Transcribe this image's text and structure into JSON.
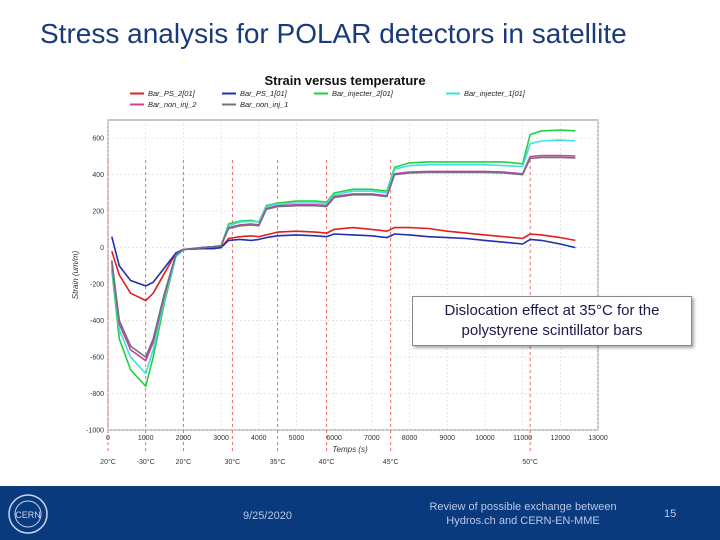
{
  "slide": {
    "title": "Stress analysis for POLAR detectors in satellite",
    "callout": "Dislocation effect at 35°C for the polystyrene scintillator bars"
  },
  "footer": {
    "date": "9/25/2020",
    "text": "Review of possible exchange between Hydros.ch and CERN-EN-MME",
    "page": "15",
    "logo_text": "CERN",
    "background": "#0a3a7e"
  },
  "chart_data": {
    "type": "line",
    "title": "Strain versus temperature",
    "xlabel": "Temps (s)",
    "ylabel": "Strain (um/m)",
    "xlim": [
      0,
      13000
    ],
    "ylim": [
      -1000,
      700
    ],
    "xticks": [
      0,
      1000,
      2000,
      3000,
      4000,
      5000,
      6000,
      7000,
      8000,
      9000,
      10000,
      11000,
      12000,
      13000
    ],
    "yticks": [
      -1000,
      -800,
      -600,
      -400,
      -200,
      0,
      200,
      400,
      600
    ],
    "grid": true,
    "legend_position": "top",
    "temperature_markers": [
      {
        "x": 0,
        "label": "20°C"
      },
      {
        "x": 1000,
        "label": "-30°C"
      },
      {
        "x": 2000,
        "label": "20°C"
      },
      {
        "x": 3300,
        "label": "30°C"
      },
      {
        "x": 4500,
        "label": "35°C"
      },
      {
        "x": 5800,
        "label": "40°C"
      },
      {
        "x": 7500,
        "label": "45°C"
      },
      {
        "x": 11200,
        "label": "50°C"
      }
    ],
    "series": [
      {
        "name": "Bar_PS_2[01]",
        "color": "#e02020",
        "points": [
          [
            100,
            -20
          ],
          [
            300,
            -150
          ],
          [
            600,
            -250
          ],
          [
            1000,
            -290
          ],
          [
            1200,
            -250
          ],
          [
            1500,
            -140
          ],
          [
            1800,
            -30
          ],
          [
            2000,
            -10
          ],
          [
            2500,
            -5
          ],
          [
            2800,
            -5
          ],
          [
            3000,
            0
          ],
          [
            3200,
            50
          ],
          [
            3500,
            60
          ],
          [
            3800,
            65
          ],
          [
            4000,
            60
          ],
          [
            4200,
            70
          ],
          [
            4500,
            85
          ],
          [
            5000,
            90
          ],
          [
            5500,
            85
          ],
          [
            5800,
            80
          ],
          [
            6000,
            100
          ],
          [
            6500,
            110
          ],
          [
            7000,
            100
          ],
          [
            7400,
            90
          ],
          [
            7600,
            110
          ],
          [
            8000,
            110
          ],
          [
            8500,
            105
          ],
          [
            9000,
            90
          ],
          [
            9500,
            80
          ],
          [
            10000,
            70
          ],
          [
            10500,
            60
          ],
          [
            11000,
            50
          ],
          [
            11200,
            75
          ],
          [
            11500,
            70
          ],
          [
            12000,
            55
          ],
          [
            12400,
            40
          ]
        ]
      },
      {
        "name": "Bar_PS_1[01]",
        "color": "#2030b0",
        "points": [
          [
            100,
            60
          ],
          [
            300,
            -100
          ],
          [
            600,
            -180
          ],
          [
            1000,
            -210
          ],
          [
            1200,
            -190
          ],
          [
            1500,
            -110
          ],
          [
            1800,
            -30
          ],
          [
            2000,
            -10
          ],
          [
            2500,
            -5
          ],
          [
            2800,
            -5
          ],
          [
            3000,
            0
          ],
          [
            3200,
            40
          ],
          [
            3500,
            45
          ],
          [
            3800,
            40
          ],
          [
            4000,
            45
          ],
          [
            4200,
            55
          ],
          [
            4500,
            65
          ],
          [
            5000,
            70
          ],
          [
            5500,
            65
          ],
          [
            5800,
            60
          ],
          [
            6000,
            75
          ],
          [
            6500,
            70
          ],
          [
            7000,
            65
          ],
          [
            7400,
            55
          ],
          [
            7600,
            75
          ],
          [
            8000,
            70
          ],
          [
            8500,
            60
          ],
          [
            9000,
            55
          ],
          [
            9500,
            50
          ],
          [
            10000,
            40
          ],
          [
            10500,
            30
          ],
          [
            11000,
            20
          ],
          [
            11200,
            45
          ],
          [
            11500,
            40
          ],
          [
            12000,
            20
          ],
          [
            12400,
            0
          ]
        ]
      },
      {
        "name": "Bar_injecter_2[01]",
        "color": "#20d040",
        "points": [
          [
            100,
            -120
          ],
          [
            300,
            -500
          ],
          [
            600,
            -670
          ],
          [
            1000,
            -760
          ],
          [
            1200,
            -600
          ],
          [
            1500,
            -300
          ],
          [
            1800,
            -50
          ],
          [
            2000,
            -10
          ],
          [
            2500,
            0
          ],
          [
            2800,
            5
          ],
          [
            3000,
            10
          ],
          [
            3200,
            130
          ],
          [
            3500,
            145
          ],
          [
            3800,
            150
          ],
          [
            4000,
            140
          ],
          [
            4200,
            230
          ],
          [
            4500,
            245
          ],
          [
            5000,
            255
          ],
          [
            5500,
            255
          ],
          [
            5800,
            250
          ],
          [
            6000,
            300
          ],
          [
            6500,
            320
          ],
          [
            7000,
            320
          ],
          [
            7400,
            310
          ],
          [
            7600,
            440
          ],
          [
            8000,
            465
          ],
          [
            8500,
            470
          ],
          [
            9000,
            470
          ],
          [
            9500,
            470
          ],
          [
            10000,
            470
          ],
          [
            10500,
            470
          ],
          [
            11000,
            460
          ],
          [
            11200,
            620
          ],
          [
            11500,
            640
          ],
          [
            12000,
            645
          ],
          [
            12400,
            640
          ]
        ]
      },
      {
        "name": "Bar_injecter_1[01]",
        "color": "#40e0e0",
        "points": [
          [
            100,
            -100
          ],
          [
            300,
            -450
          ],
          [
            600,
            -600
          ],
          [
            1000,
            -690
          ],
          [
            1200,
            -560
          ],
          [
            1500,
            -280
          ],
          [
            1800,
            -50
          ],
          [
            2000,
            -10
          ],
          [
            2500,
            0
          ],
          [
            2800,
            5
          ],
          [
            3000,
            10
          ],
          [
            3200,
            120
          ],
          [
            3500,
            140
          ],
          [
            3800,
            145
          ],
          [
            4000,
            140
          ],
          [
            4200,
            225
          ],
          [
            4500,
            240
          ],
          [
            5000,
            245
          ],
          [
            5500,
            245
          ],
          [
            5800,
            240
          ],
          [
            6000,
            290
          ],
          [
            6500,
            310
          ],
          [
            7000,
            310
          ],
          [
            7400,
            300
          ],
          [
            7600,
            430
          ],
          [
            8000,
            450
          ],
          [
            8500,
            455
          ],
          [
            9000,
            455
          ],
          [
            9500,
            455
          ],
          [
            10000,
            455
          ],
          [
            10500,
            450
          ],
          [
            11000,
            445
          ],
          [
            11200,
            570
          ],
          [
            11500,
            585
          ],
          [
            12000,
            590
          ],
          [
            12400,
            585
          ]
        ]
      },
      {
        "name": "Bar_non_inj_2",
        "color": "#d040a0",
        "points": [
          [
            100,
            -80
          ],
          [
            300,
            -420
          ],
          [
            600,
            -560
          ],
          [
            1000,
            -620
          ],
          [
            1200,
            -520
          ],
          [
            1500,
            -260
          ],
          [
            1800,
            -40
          ],
          [
            2000,
            -10
          ],
          [
            2500,
            0
          ],
          [
            2800,
            5
          ],
          [
            3000,
            10
          ],
          [
            3200,
            110
          ],
          [
            3500,
            125
          ],
          [
            3800,
            130
          ],
          [
            4000,
            125
          ],
          [
            4200,
            215
          ],
          [
            4500,
            230
          ],
          [
            5000,
            235
          ],
          [
            5500,
            235
          ],
          [
            5800,
            230
          ],
          [
            6000,
            280
          ],
          [
            6500,
            295
          ],
          [
            7000,
            295
          ],
          [
            7400,
            285
          ],
          [
            7600,
            405
          ],
          [
            8000,
            415
          ],
          [
            8500,
            418
          ],
          [
            9000,
            418
          ],
          [
            9500,
            418
          ],
          [
            10000,
            418
          ],
          [
            10500,
            415
          ],
          [
            11000,
            405
          ],
          [
            11200,
            500
          ],
          [
            11500,
            505
          ],
          [
            12000,
            505
          ],
          [
            12400,
            502
          ]
        ]
      },
      {
        "name": "Bar_non_inj_1",
        "color": "#707080",
        "points": [
          [
            100,
            -70
          ],
          [
            300,
            -400
          ],
          [
            600,
            -540
          ],
          [
            1000,
            -600
          ],
          [
            1200,
            -500
          ],
          [
            1500,
            -250
          ],
          [
            1800,
            -40
          ],
          [
            2000,
            -10
          ],
          [
            2500,
            0
          ],
          [
            2800,
            5
          ],
          [
            3000,
            10
          ],
          [
            3200,
            105
          ],
          [
            3500,
            120
          ],
          [
            3800,
            125
          ],
          [
            4000,
            120
          ],
          [
            4200,
            210
          ],
          [
            4500,
            225
          ],
          [
            5000,
            230
          ],
          [
            5500,
            230
          ],
          [
            5800,
            225
          ],
          [
            6000,
            275
          ],
          [
            6500,
            290
          ],
          [
            7000,
            290
          ],
          [
            7400,
            280
          ],
          [
            7600,
            400
          ],
          [
            8000,
            410
          ],
          [
            8500,
            412
          ],
          [
            9000,
            412
          ],
          [
            9500,
            412
          ],
          [
            10000,
            412
          ],
          [
            10500,
            410
          ],
          [
            11000,
            400
          ],
          [
            11200,
            490
          ],
          [
            11500,
            495
          ],
          [
            12000,
            495
          ],
          [
            12400,
            492
          ]
        ]
      }
    ]
  }
}
